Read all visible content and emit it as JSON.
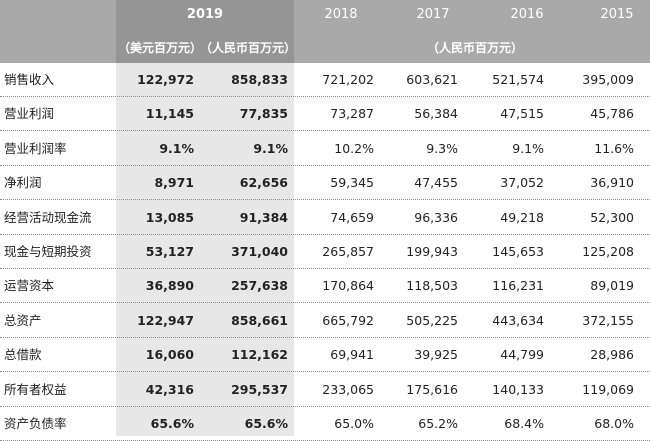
{
  "header": {
    "years": [
      "2019",
      "2018",
      "2017",
      "2016",
      "2015"
    ],
    "unit_usd": "（美元百万元）",
    "unit_rmb": "（人民币百万元）",
    "unit_rmb_history": "（人民币百万元）"
  },
  "rows": [
    {
      "label": "销售收入",
      "values": [
        "122,972",
        "858,833",
        "721,202",
        "603,621",
        "521,574",
        "395,009"
      ]
    },
    {
      "label": "营业利润",
      "values": [
        "11,145",
        "77,835",
        "73,287",
        "56,384",
        "47,515",
        "45,786"
      ]
    },
    {
      "label": "营业利润率",
      "values": [
        "9.1%",
        "9.1%",
        "10.2%",
        "9.3%",
        "9.1%",
        "11.6%"
      ]
    },
    {
      "label": "净利润",
      "values": [
        "8,971",
        "62,656",
        "59,345",
        "47,455",
        "37,052",
        "36,910"
      ]
    },
    {
      "label": "经营活动现金流",
      "values": [
        "13,085",
        "91,384",
        "74,659",
        "96,336",
        "49,218",
        "52,300"
      ]
    },
    {
      "label": "现金与短期投资",
      "values": [
        "53,127",
        "371,040",
        "265,857",
        "199,943",
        "145,653",
        "125,208"
      ]
    },
    {
      "label": "运营资本",
      "values": [
        "36,890",
        "257,638",
        "170,864",
        "118,503",
        "116,231",
        "89,019"
      ]
    },
    {
      "label": "总资产",
      "values": [
        "122,947",
        "858,661",
        "665,792",
        "505,225",
        "443,634",
        "372,155"
      ]
    },
    {
      "label": "总借款",
      "values": [
        "16,060",
        "112,162",
        "69,941",
        "39,925",
        "44,799",
        "28,986"
      ]
    },
    {
      "label": "所有者权益",
      "values": [
        "42,316",
        "295,537",
        "233,065",
        "175,616",
        "140,133",
        "119,069"
      ]
    },
    {
      "label": "资产负债率",
      "values": [
        "65.6%",
        "65.6%",
        "65.0%",
        "65.2%",
        "68.4%",
        "68.0%"
      ]
    }
  ]
}
